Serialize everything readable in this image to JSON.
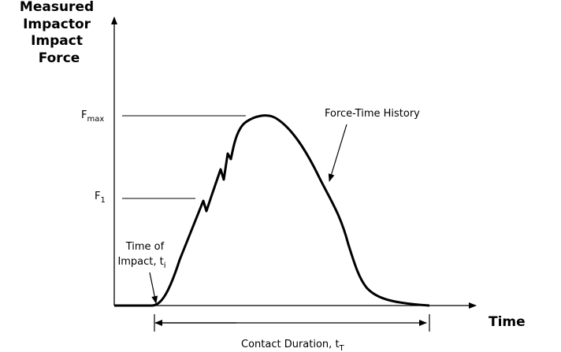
{
  "y_axis_label": [
    "Measured",
    "Impactor",
    "Impact",
    "Force"
  ],
  "x_axis_label": "Time",
  "f_max": {
    "base": "F",
    "sub": "max"
  },
  "f_1": {
    "base": "F",
    "sub": "1"
  },
  "curve_label": "Force-Time History",
  "impact_label": {
    "line1": "Time of",
    "line2": "Impact, t",
    "sub": "i"
  },
  "duration_label": {
    "base": "Contact Duration, t",
    "sub": "T"
  }
}
